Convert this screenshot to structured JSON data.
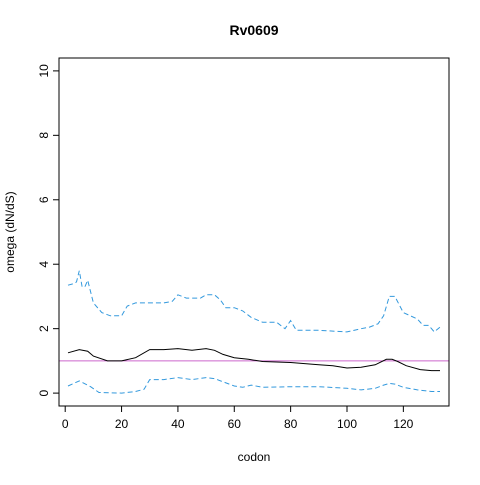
{
  "chart_data": {
    "type": "line",
    "title": "Rv0609",
    "xlabel": "codon",
    "ylabel": "omega (dN/dS)",
    "xlim": [
      -2.2,
      136.2
    ],
    "ylim": [
      -0.4,
      10.4
    ],
    "x_ticks": [
      0,
      20,
      40,
      60,
      80,
      100,
      120
    ],
    "y_ticks": [
      0,
      2,
      4,
      6,
      8,
      10
    ],
    "grid": false,
    "legend": "none",
    "reference_line": {
      "y": 1,
      "color": "#cc66cc"
    },
    "series": [
      {
        "role": "estimate",
        "style": "solid",
        "color": "#000000",
        "x": [
          1,
          5,
          8,
          10,
          15,
          20,
          25,
          30,
          35,
          40,
          45,
          50,
          53,
          56,
          60,
          65,
          70,
          80,
          90,
          95,
          100,
          105,
          110,
          114,
          116,
          118,
          121,
          126,
          130,
          133
        ],
        "y": [
          1.25,
          1.35,
          1.3,
          1.15,
          1.0,
          1.0,
          1.1,
          1.35,
          1.35,
          1.38,
          1.33,
          1.38,
          1.33,
          1.2,
          1.1,
          1.05,
          0.98,
          0.95,
          0.88,
          0.85,
          0.78,
          0.8,
          0.88,
          1.05,
          1.05,
          0.98,
          0.85,
          0.73,
          0.7,
          0.7
        ]
      },
      {
        "role": "upper bound",
        "style": "dashed",
        "color": "#3399dd",
        "x": [
          1,
          3,
          4,
          5,
          6,
          7,
          8,
          10,
          13,
          16,
          20,
          22,
          25,
          30,
          35,
          38,
          40,
          43,
          48,
          50,
          53,
          55,
          57,
          60,
          63,
          66,
          70,
          75,
          78,
          80,
          82,
          90,
          100,
          105,
          108,
          111,
          113,
          115,
          117,
          120,
          125,
          127,
          129,
          131,
          133
        ],
        "y": [
          3.35,
          3.4,
          3.45,
          3.8,
          3.3,
          3.3,
          3.5,
          2.8,
          2.5,
          2.4,
          2.4,
          2.7,
          2.8,
          2.8,
          2.8,
          2.85,
          3.05,
          2.95,
          2.95,
          3.05,
          3.05,
          2.9,
          2.65,
          2.65,
          2.55,
          2.35,
          2.2,
          2.2,
          2.0,
          2.25,
          1.95,
          1.95,
          1.9,
          2.0,
          2.05,
          2.15,
          2.4,
          3.0,
          3.0,
          2.5,
          2.3,
          2.1,
          2.1,
          1.9,
          2.05
        ]
      },
      {
        "role": "lower bound",
        "style": "dashed",
        "color": "#3399dd",
        "x": [
          1,
          5,
          9,
          12,
          20,
          25,
          28,
          30,
          35,
          40,
          45,
          50,
          53,
          56,
          60,
          63,
          66,
          70,
          80,
          90,
          100,
          105,
          110,
          113,
          115,
          117,
          120,
          125,
          130,
          133
        ],
        "y": [
          0.22,
          0.38,
          0.2,
          0.02,
          0.0,
          0.05,
          0.12,
          0.42,
          0.42,
          0.48,
          0.42,
          0.48,
          0.45,
          0.35,
          0.22,
          0.18,
          0.25,
          0.18,
          0.2,
          0.2,
          0.15,
          0.1,
          0.15,
          0.25,
          0.3,
          0.28,
          0.18,
          0.1,
          0.05,
          0.05
        ]
      }
    ]
  }
}
